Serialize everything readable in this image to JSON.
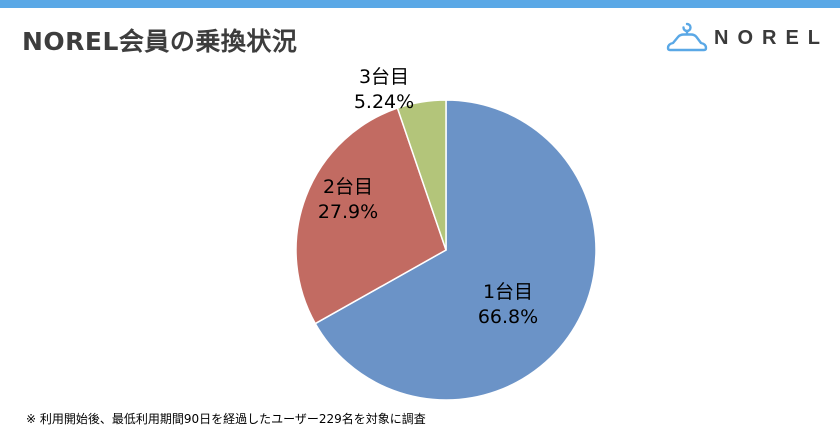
{
  "header": {
    "title": "NOREL会員の乗換状況",
    "logo_text": "NOREL",
    "accent_color": "#5aa8e6"
  },
  "chart_data": {
    "type": "pie",
    "title": "",
    "slices": [
      {
        "label": "1台目",
        "value": 66.8,
        "value_label": "66.8%",
        "color": "#6b93c7"
      },
      {
        "label": "2台目",
        "value": 27.9,
        "value_label": "27.9%",
        "color": "#c26b62"
      },
      {
        "label": "3台目",
        "value": 5.24,
        "value_label": "5.24%",
        "color": "#b3c57a"
      }
    ],
    "start": "12 o'clock",
    "direction": "clockwise"
  },
  "footnote": "※ 利用開始後、最低利用期間90日を経過したユーザー229名を対象に調査"
}
